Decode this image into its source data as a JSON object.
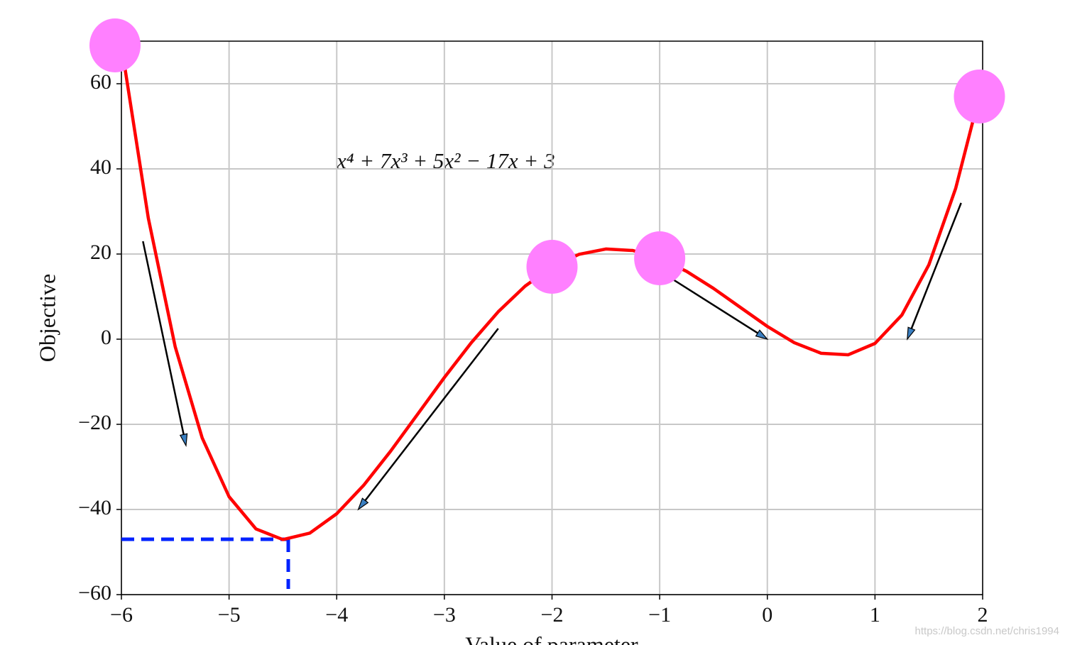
{
  "chart_data": {
    "type": "line",
    "xlabel": "Value of parameter",
    "ylabel": "Objective",
    "annotation": "x⁴ + 7x³ + 5x² − 17x + 3",
    "x": [
      -6,
      -5.75,
      -5.5,
      -5.25,
      -5,
      -4.75,
      -4.5,
      -4.25,
      -4,
      -3.75,
      -3.5,
      -3.25,
      -3,
      -2.75,
      -2.5,
      -2.25,
      -2,
      -1.75,
      -1.5,
      -1.25,
      -1,
      -0.75,
      -0.5,
      -0.25,
      0,
      0.25,
      0.5,
      0.75,
      1,
      1.25,
      1.5,
      1.75,
      1.95
    ],
    "series": [
      {
        "color": "#ff0000",
        "values": [
          69,
          28.42,
          -1.82,
          -23.17,
          -37,
          -44.57,
          -47.07,
          -45.55,
          -41,
          -34.33,
          -26.32,
          -17.67,
          -9,
          -0.83,
          6.43,
          12.46,
          17,
          19.92,
          21.18,
          20.83,
          19,
          15.93,
          11.93,
          7.46,
          3,
          -0.82,
          -3.31,
          -3.67,
          -1,
          5.67,
          17.44,
          35.46,
          55.2
        ]
      }
    ],
    "points": {
      "color": "#ff80ff",
      "x": [
        -6,
        -2,
        -1,
        1.97
      ],
      "y": [
        69,
        17,
        19,
        57
      ]
    },
    "arrows": [
      {
        "from": [
          -5.8,
          23
        ],
        "to": [
          -5.4,
          -25
        ]
      },
      {
        "from": [
          -2.5,
          2.5
        ],
        "to": [
          -3.8,
          -40
        ]
      },
      {
        "from": [
          -1,
          16
        ],
        "to": [
          0,
          0
        ]
      },
      {
        "from": [
          1.8,
          32
        ],
        "to": [
          1.3,
          0
        ]
      }
    ],
    "minimum": {
      "color": "#0022ff",
      "x": -4.45,
      "y": -47
    },
    "xlim": [
      -6,
      2
    ],
    "ylim": [
      -60,
      70
    ],
    "xticks": [
      {
        "value": -6,
        "label": "−6"
      },
      {
        "value": -5,
        "label": "−5"
      },
      {
        "value": -4,
        "label": "−4"
      },
      {
        "value": -3,
        "label": "−3"
      },
      {
        "value": -2,
        "label": "−2"
      },
      {
        "value": -1,
        "label": "−1"
      },
      0,
      1,
      2
    ],
    "yticks": [
      {
        "value": -60,
        "label": "−60"
      },
      {
        "value": -40,
        "label": "−40"
      },
      {
        "value": -20,
        "label": "−20"
      },
      0,
      20,
      40,
      60
    ],
    "grid": true
  },
  "watermark": "https://blog.csdn.net/chris1994"
}
